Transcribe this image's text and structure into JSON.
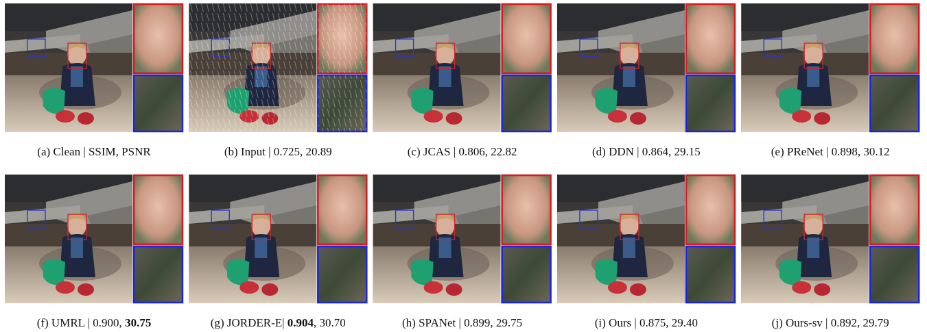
{
  "panels": [
    {
      "caption": [
        {
          "text": "(a) Clean | SSIM, PSNR"
        }
      ]
    },
    {
      "caption": [
        {
          "text": "(b) Input | 0.725, 20.89"
        }
      ]
    },
    {
      "caption": [
        {
          "text": "(c) JCAS | 0.806, 22.82"
        }
      ]
    },
    {
      "caption": [
        {
          "text": "(d) DDN | 0.864, 29.15"
        }
      ]
    },
    {
      "caption": [
        {
          "text": "(e) PReNet | 0.898, 30.12"
        }
      ]
    },
    {
      "caption": [
        {
          "text": "(f) UMRL | 0.900, "
        },
        {
          "text": "30.75",
          "bold": true
        }
      ]
    },
    {
      "caption": [
        {
          "text": "(g) JORDER-E| "
        },
        {
          "text": "0.904",
          "bold": true
        },
        {
          "text": ", 30.70"
        }
      ]
    },
    {
      "caption": [
        {
          "text": "(h) SPANet | 0.899, 29.75"
        }
      ]
    },
    {
      "caption": [
        {
          "text": "(i) Ours | 0.875, 29.40"
        }
      ]
    },
    {
      "caption": [
        {
          "text": "(j) Ours-sv | 0.892, 29.79"
        }
      ]
    }
  ]
}
